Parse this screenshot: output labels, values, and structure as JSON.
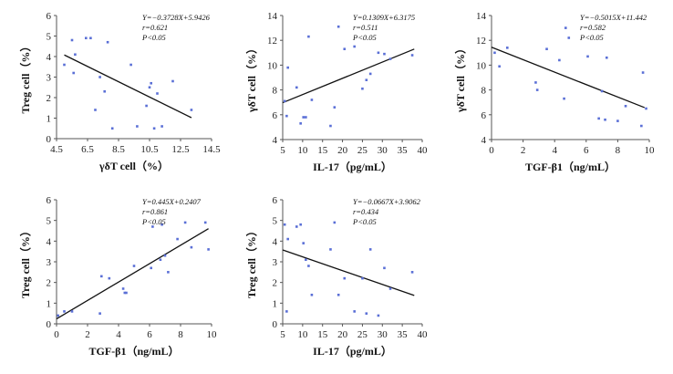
{
  "chart_data": [
    {
      "type": "scatter",
      "xlabel": "γδT cell（%）",
      "ylabel": "Treg cell（%）",
      "xticks": [
        "4.5",
        "6.5",
        "8.5",
        "10.5",
        "12.5",
        "14.5"
      ],
      "yticks": [
        "0",
        "1",
        "2",
        "3",
        "4",
        "5",
        "6"
      ],
      "xlim": [
        4.5,
        14.5
      ],
      "ylim": [
        0,
        6
      ],
      "annotations": [
        "Y=−0.3728X+5.9426",
        "r=0.621",
        "P<0.05"
      ],
      "fit": {
        "slope": -0.3728,
        "intercept": 5.9426,
        "x_range": [
          5.0,
          13.2
        ]
      },
      "x": [
        5.0,
        5.5,
        5.6,
        5.7,
        6.4,
        6.7,
        7.0,
        7.3,
        7.6,
        7.8,
        8.1,
        9.3,
        9.7,
        10.3,
        10.5,
        10.6,
        10.8,
        11.0,
        11.3,
        12.0,
        13.2
      ],
      "y": [
        3.6,
        4.8,
        3.2,
        4.1,
        4.9,
        4.9,
        1.4,
        3.0,
        2.3,
        4.7,
        0.5,
        3.6,
        0.6,
        1.6,
        2.5,
        2.7,
        0.5,
        2.2,
        0.6,
        2.8,
        1.4
      ]
    },
    {
      "type": "scatter",
      "xlabel": "IL-17（pg/mL）",
      "ylabel": "γδT cell（%）",
      "xticks": [
        "5",
        "10",
        "15",
        "20",
        "25",
        "30",
        "35",
        "40"
      ],
      "yticks": [
        "4",
        "6",
        "8",
        "10",
        "12",
        "14"
      ],
      "xlim": [
        5,
        40
      ],
      "ylim": [
        4,
        14
      ],
      "annotations": [
        "Y=0.1309X+6.3175",
        "r=0.511",
        "P<0.05"
      ],
      "fit": {
        "slope": 0.1309,
        "intercept": 6.3175,
        "x_range": [
          5.0,
          38.0
        ]
      },
      "x": [
        5.5,
        6.0,
        6.3,
        8.5,
        9.5,
        10.2,
        10.8,
        11.5,
        12.3,
        17.0,
        18.0,
        19.0,
        20.5,
        23.0,
        25.0,
        26.0,
        27.0,
        29.0,
        30.5,
        32.0,
        37.5
      ],
      "y": [
        7.1,
        5.9,
        9.8,
        8.2,
        5.3,
        5.8,
        5.8,
        12.3,
        7.2,
        5.1,
        6.6,
        13.1,
        11.3,
        11.5,
        8.1,
        8.8,
        9.3,
        11.0,
        10.9,
        10.5,
        10.8
      ]
    },
    {
      "type": "scatter",
      "xlabel": "TGF-β1（ng/mL）",
      "ylabel": "γδT cell（%）",
      "xticks": [
        "0",
        "2",
        "4",
        "6",
        "8",
        "10"
      ],
      "yticks": [
        "4",
        "6",
        "8",
        "10",
        "12",
        "14"
      ],
      "xlim": [
        0,
        10
      ],
      "ylim": [
        4,
        14
      ],
      "annotations": [
        "Y=−0.5015X+11.442",
        "r=0.582",
        "P<0.05"
      ],
      "fit": {
        "slope": -0.5015,
        "intercept": 11.442,
        "x_range": [
          0.0,
          9.7
        ]
      },
      "x": [
        0.2,
        0.5,
        1.0,
        2.8,
        2.9,
        3.5,
        4.3,
        4.6,
        4.7,
        4.9,
        6.1,
        6.8,
        7.0,
        7.2,
        7.3,
        8.0,
        8.5,
        9.5,
        9.6,
        9.8
      ],
      "y": [
        11.0,
        9.9,
        11.4,
        8.6,
        8.0,
        11.3,
        10.4,
        7.3,
        13.0,
        12.2,
        10.7,
        5.7,
        7.9,
        5.6,
        10.6,
        5.5,
        6.7,
        5.1,
        9.4,
        6.5
      ]
    },
    {
      "type": "scatter",
      "xlabel": "TGF-β1（ng/mL）",
      "ylabel": "Treg cell（%）",
      "xticks": [
        "0",
        "2",
        "4",
        "6",
        "8",
        "10"
      ],
      "yticks": [
        "0",
        "1",
        "2",
        "3",
        "4",
        "5",
        "6"
      ],
      "xlim": [
        0,
        10
      ],
      "ylim": [
        0,
        6
      ],
      "annotations": [
        "Y=0.445X+0.2407",
        "r=0.861",
        "P<0.05"
      ],
      "fit": {
        "slope": 0.445,
        "intercept": 0.2407,
        "x_range": [
          0.0,
          9.8
        ]
      },
      "x": [
        0.1,
        0.5,
        1.0,
        2.8,
        2.9,
        3.4,
        4.3,
        4.4,
        4.5,
        5.0,
        6.1,
        6.2,
        6.7,
        6.8,
        7.0,
        7.2,
        7.8,
        8.3,
        8.7,
        9.6,
        9.8
      ],
      "y": [
        0.4,
        0.6,
        0.6,
        0.5,
        2.3,
        2.2,
        1.7,
        1.5,
        1.5,
        2.8,
        2.7,
        4.7,
        3.1,
        4.8,
        3.3,
        2.5,
        4.1,
        4.9,
        3.7,
        4.9,
        3.6
      ]
    },
    {
      "type": "scatter",
      "xlabel": "IL-17（pg/mL）",
      "ylabel": "Treg cell（%）",
      "xticks": [
        "5",
        "10",
        "15",
        "20",
        "25",
        "30",
        "35",
        "40"
      ],
      "yticks": [
        "0",
        "1",
        "2",
        "3",
        "4",
        "5",
        "6"
      ],
      "xlim": [
        5,
        40
      ],
      "ylim": [
        0,
        6
      ],
      "annotations": [
        "Y=−0.0667X+3.9062",
        "r=0.434",
        "P<0.05"
      ],
      "fit": {
        "slope": -0.0667,
        "intercept": 3.9062,
        "x_range": [
          5.0,
          38.0
        ]
      },
      "x": [
        5.5,
        6.0,
        6.3,
        8.5,
        9.5,
        10.2,
        10.8,
        11.5,
        12.3,
        17.0,
        18.0,
        19.0,
        20.5,
        23.0,
        25.0,
        26.0,
        27.0,
        29.0,
        30.5,
        32.0,
        37.5
      ],
      "y": [
        4.8,
        0.6,
        4.1,
        4.7,
        4.8,
        3.9,
        3.1,
        2.8,
        1.4,
        3.6,
        4.9,
        1.4,
        2.2,
        0.6,
        2.2,
        0.5,
        3.6,
        0.4,
        2.7,
        1.7,
        2.5
      ]
    }
  ]
}
